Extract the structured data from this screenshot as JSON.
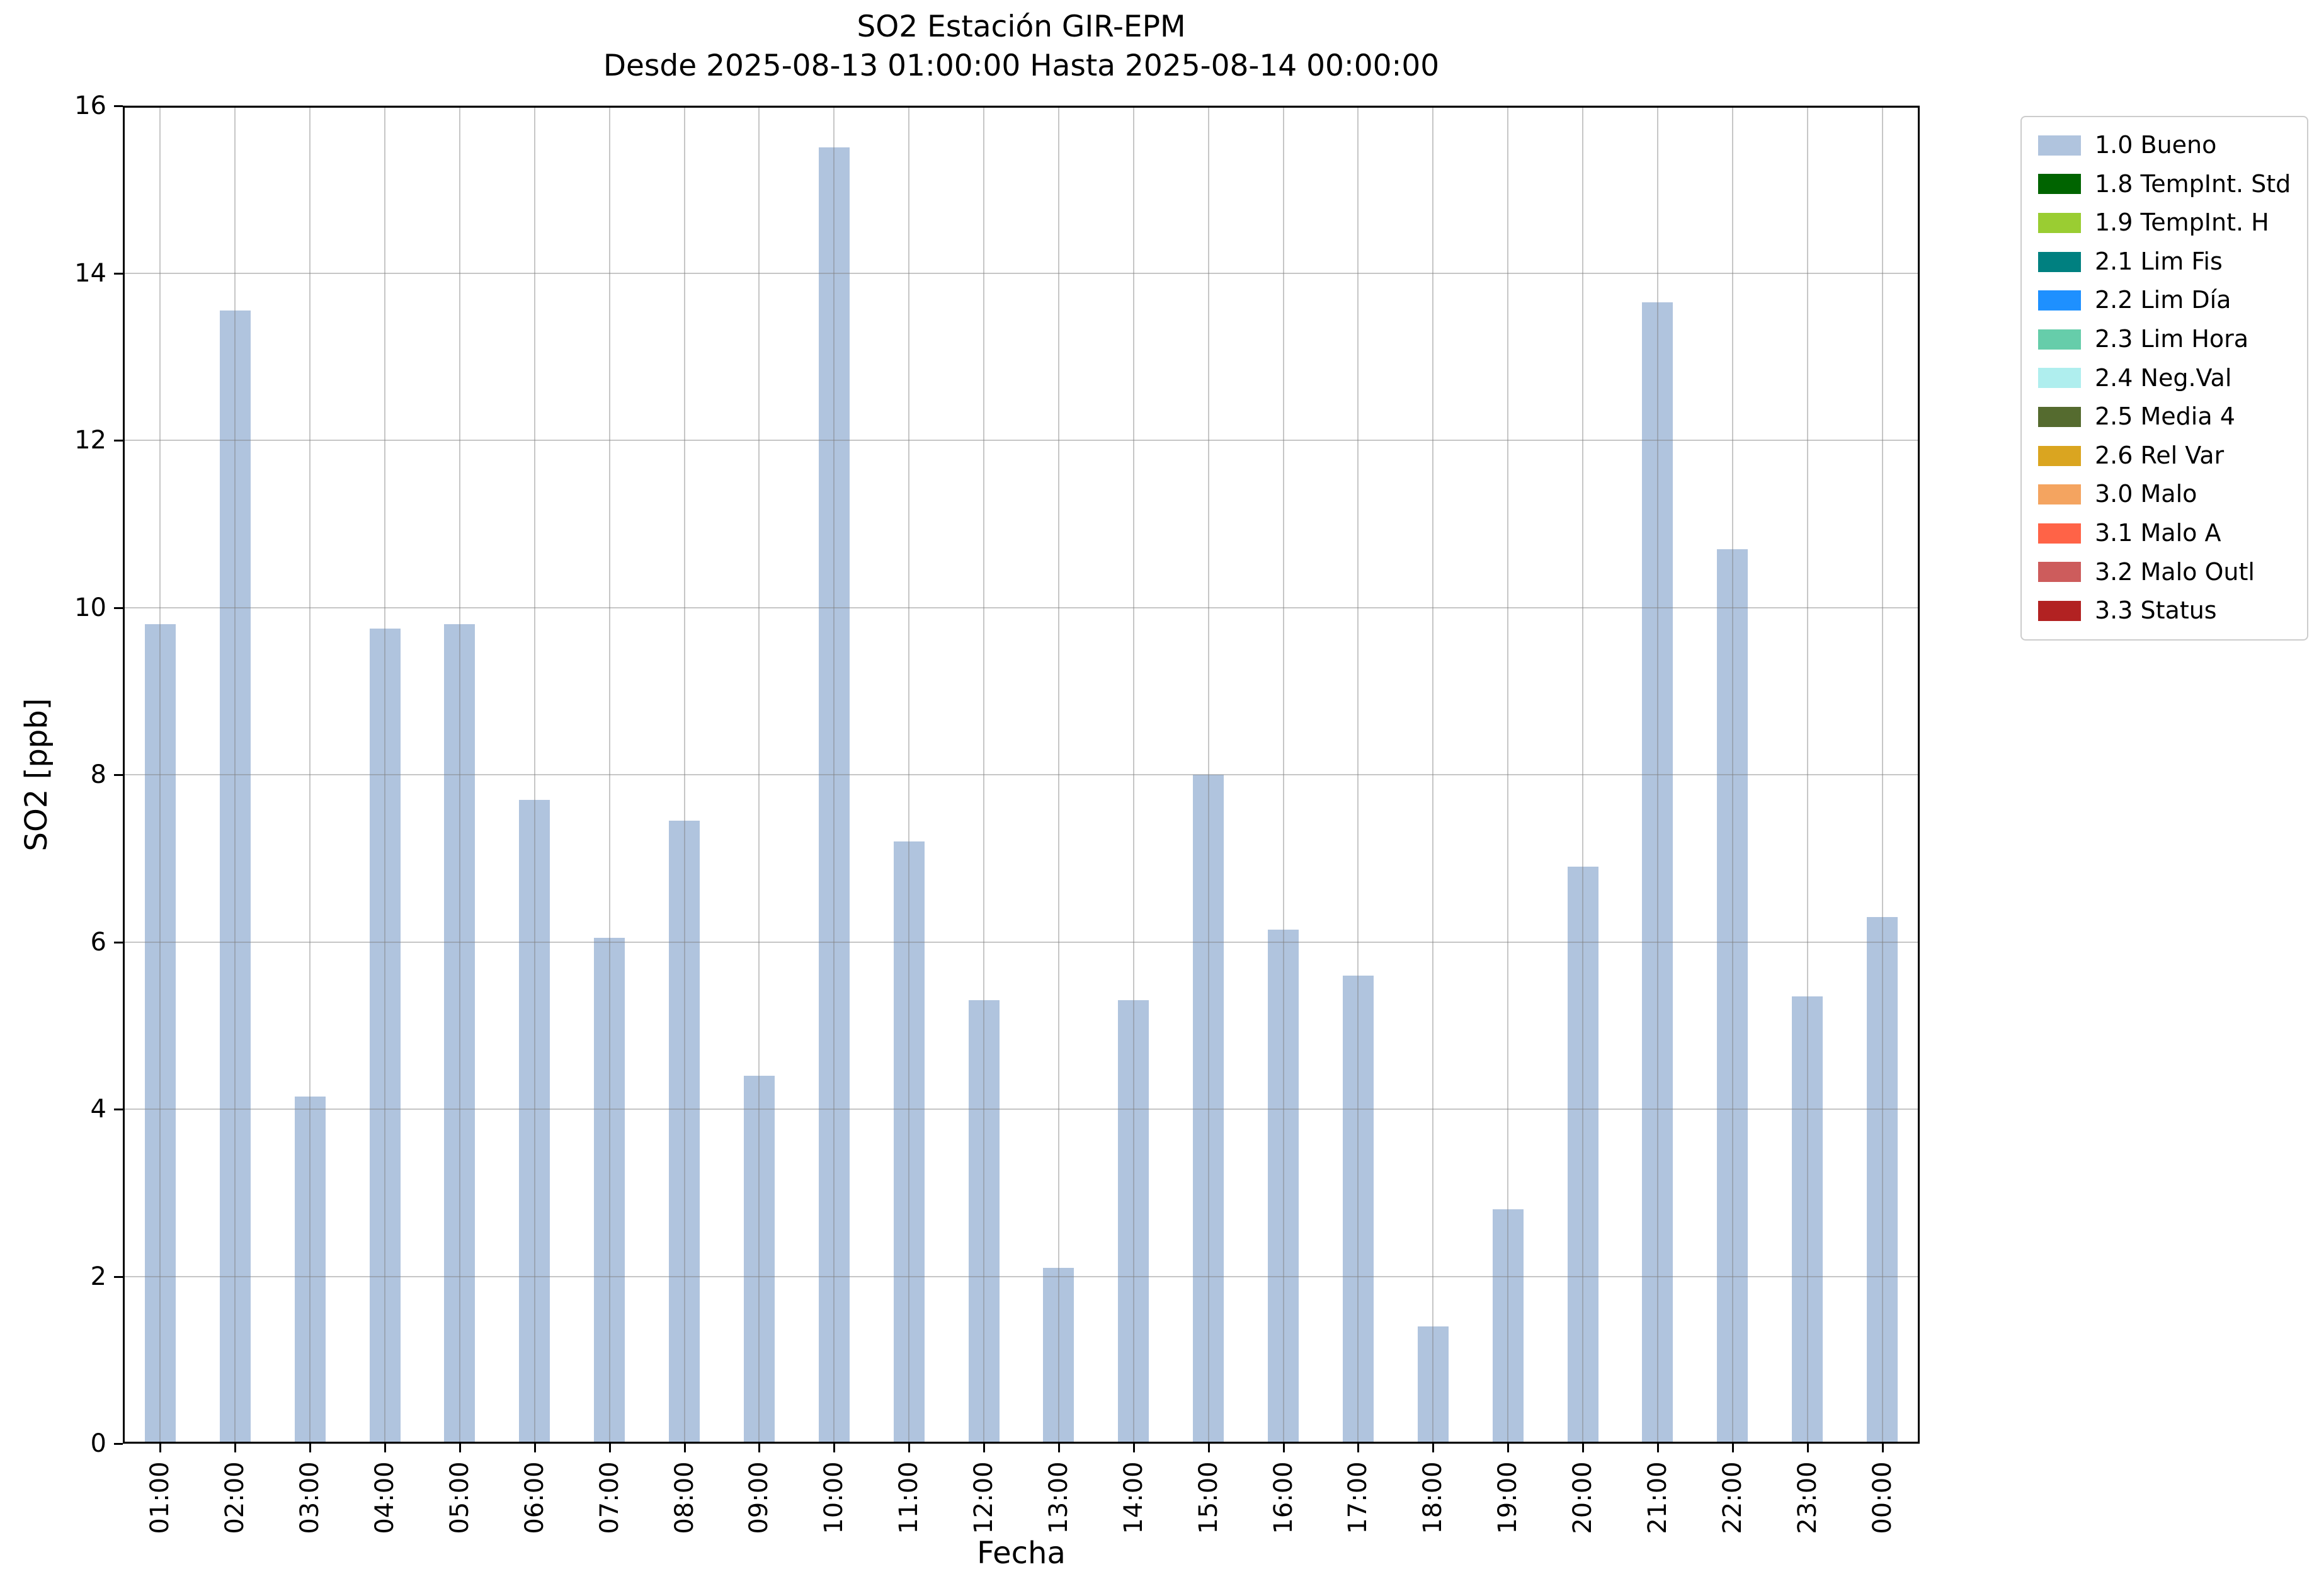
{
  "chart_data": {
    "type": "bar",
    "title": "SO2 Estación GIR-EPM",
    "subtitle": "Desde 2025-08-13 01:00:00 Hasta 2025-08-14 00:00:00",
    "xlabel": "Fecha",
    "ylabel": "SO2 [ppb]",
    "ylim": [
      0,
      16
    ],
    "yticks": [
      0,
      2,
      4,
      6,
      8,
      10,
      12,
      14,
      16
    ],
    "grid": true,
    "bar_color": "#b0c4de",
    "categories": [
      "01:00",
      "02:00",
      "03:00",
      "04:00",
      "05:00",
      "06:00",
      "07:00",
      "08:00",
      "09:00",
      "10:00",
      "11:00",
      "12:00",
      "13:00",
      "14:00",
      "15:00",
      "16:00",
      "17:00",
      "18:00",
      "19:00",
      "20:00",
      "21:00",
      "22:00",
      "23:00",
      "00:00"
    ],
    "values": [
      9.8,
      13.55,
      4.15,
      9.75,
      9.8,
      7.7,
      6.05,
      7.45,
      4.4,
      15.5,
      7.2,
      5.3,
      2.1,
      5.3,
      8.0,
      6.15,
      5.6,
      1.4,
      2.8,
      6.9,
      13.65,
      10.7,
      5.35,
      6.3
    ],
    "legend": {
      "position": "outside-upper-right",
      "entries": [
        {
          "label": "1.0 Bueno",
          "color": "#b0c4de"
        },
        {
          "label": "1.8 TempInt. Std",
          "color": "#006400"
        },
        {
          "label": "1.9 TempInt. H",
          "color": "#9acd32"
        },
        {
          "label": "2.1 Lim Fis",
          "color": "#008080"
        },
        {
          "label": "2.2 Lim Día",
          "color": "#1e90ff"
        },
        {
          "label": "2.3 Lim Hora",
          "color": "#66cdaa"
        },
        {
          "label": "2.4 Neg.Val",
          "color": "#afeeee"
        },
        {
          "label": "2.5 Media 4",
          "color": "#556b2f"
        },
        {
          "label": "2.6 Rel Var",
          "color": "#daa520"
        },
        {
          "label": "3.0 Malo",
          "color": "#f4a460"
        },
        {
          "label": "3.1 Malo A",
          "color": "#ff6347"
        },
        {
          "label": "3.2 Malo Outl",
          "color": "#cd5c5c"
        },
        {
          "label": "3.3 Status",
          "color": "#b22222"
        }
      ]
    }
  }
}
